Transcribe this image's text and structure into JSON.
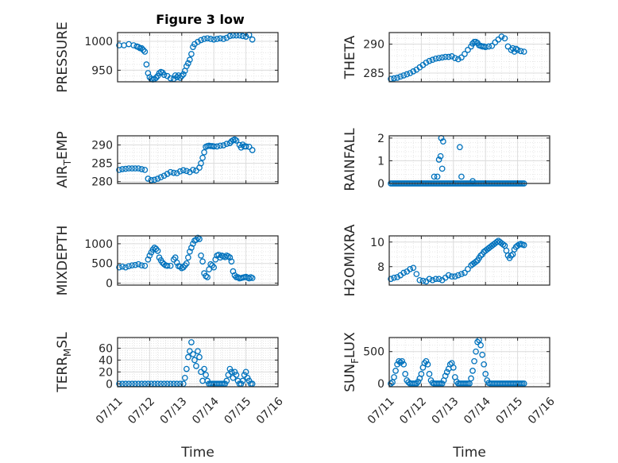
{
  "chart_data": [
    {
      "type": "scatter",
      "title": "Figure 3 low",
      "ylabel": "PRESSURE",
      "xlabel": "",
      "xlim": [
        "07/11",
        "07/16"
      ],
      "ylim": [
        930,
        1015
      ],
      "yticks": [
        950,
        1000
      ],
      "xticks": [
        "07/11",
        "07/12",
        "07/13",
        "07/14",
        "07/15",
        "07/16"
      ],
      "grid": true,
      "color": "#0072bd",
      "x": [
        0.05,
        0.2,
        0.35,
        0.5,
        0.6,
        0.65,
        0.7,
        0.75,
        0.8,
        0.85,
        0.9,
        0.95,
        1.0,
        1.05,
        1.1,
        1.15,
        1.2,
        1.25,
        1.3,
        1.35,
        1.4,
        1.45,
        1.55,
        1.65,
        1.75,
        1.8,
        1.85,
        1.9,
        1.95,
        2.0,
        2.05,
        2.1,
        2.15,
        2.2,
        2.25,
        2.3,
        2.35,
        2.4,
        2.5,
        2.6,
        2.7,
        2.8,
        2.9,
        3.0,
        3.1,
        3.2,
        3.3,
        3.4,
        3.5,
        3.6,
        3.7,
        3.8,
        3.9,
        4.0,
        4.1,
        4.2
      ],
      "y": [
        993,
        993,
        995,
        993,
        991,
        990,
        988,
        988,
        985,
        982,
        960,
        945,
        938,
        935,
        934,
        935,
        937,
        940,
        945,
        947,
        946,
        942,
        940,
        936,
        935,
        941,
        938,
        941,
        937,
        940,
        943,
        949,
        957,
        962,
        968,
        978,
        990,
        995,
        999,
        1002,
        1004,
        1005,
        1004,
        1003,
        1004,
        1005,
        1004,
        1006,
        1009,
        1010,
        1010,
        1010,
        1009,
        1008,
        1011,
        1003
      ]
    },
    {
      "type": "scatter",
      "ylabel": "THETA",
      "xlabel": "",
      "xlim": [
        "07/11",
        "07/16"
      ],
      "ylim": [
        283.5,
        292
      ],
      "yticks": [
        285,
        290
      ],
      "xticks": [
        "07/11",
        "07/12",
        "07/13",
        "07/14",
        "07/15",
        "07/16"
      ],
      "grid": true,
      "color": "#0072bd",
      "x": [
        0.05,
        0.15,
        0.25,
        0.35,
        0.45,
        0.55,
        0.65,
        0.75,
        0.85,
        0.95,
        1.05,
        1.15,
        1.25,
        1.35,
        1.45,
        1.55,
        1.65,
        1.75,
        1.85,
        1.95,
        2.05,
        2.15,
        2.25,
        2.35,
        2.45,
        2.55,
        2.6,
        2.65,
        2.7,
        2.75,
        2.8,
        2.85,
        2.9,
        2.95,
        3.0,
        3.1,
        3.2,
        3.3,
        3.4,
        3.5,
        3.6,
        3.7,
        3.8,
        3.85,
        3.9,
        3.95,
        4.0,
        4.1,
        4.2
      ],
      "y": [
        284.0,
        284.1,
        284.2,
        284.4,
        284.6,
        284.8,
        285.0,
        285.3,
        285.6,
        286.0,
        286.4,
        286.8,
        287.1,
        287.3,
        287.5,
        287.6,
        287.7,
        287.8,
        287.8,
        287.9,
        287.6,
        287.4,
        287.7,
        288.3,
        289.0,
        289.6,
        290.1,
        290.4,
        290.4,
        290.2,
        289.8,
        289.7,
        289.6,
        289.6,
        289.5,
        289.6,
        289.7,
        290.3,
        290.8,
        291.3,
        291.0,
        289.6,
        289.0,
        289.3,
        288.7,
        289.2,
        289.0,
        288.8,
        288.7
      ]
    },
    {
      "type": "scatter",
      "ylabel": "AIR_TEMP",
      "xlabel": "",
      "xlim": [
        "07/11",
        "07/16"
      ],
      "ylim": [
        279.5,
        292.5
      ],
      "yticks": [
        280,
        285,
        290
      ],
      "xticks": [
        "07/11",
        "07/12",
        "07/13",
        "07/14",
        "07/15",
        "07/16"
      ],
      "grid": true,
      "color": "#0072bd",
      "x": [
        0.05,
        0.15,
        0.25,
        0.35,
        0.45,
        0.55,
        0.65,
        0.75,
        0.85,
        0.95,
        1.05,
        1.15,
        1.25,
        1.35,
        1.45,
        1.55,
        1.65,
        1.75,
        1.85,
        1.95,
        2.05,
        2.15,
        2.25,
        2.35,
        2.45,
        2.55,
        2.6,
        2.65,
        2.7,
        2.75,
        2.8,
        2.85,
        2.9,
        2.95,
        3.0,
        3.1,
        3.2,
        3.3,
        3.4,
        3.5,
        3.55,
        3.6,
        3.65,
        3.7,
        3.8,
        3.85,
        3.9,
        3.95,
        4.0,
        4.1,
        4.2
      ],
      "y": [
        283.2,
        283.4,
        283.5,
        283.6,
        283.6,
        283.6,
        283.6,
        283.4,
        283.2,
        280.8,
        280.4,
        280.5,
        280.8,
        281.2,
        281.6,
        282.1,
        282.6,
        282.4,
        282.3,
        282.8,
        283.1,
        282.9,
        282.6,
        283.2,
        283.0,
        283.8,
        285.0,
        286.5,
        288.0,
        289.5,
        289.7,
        289.8,
        289.7,
        289.7,
        289.6,
        289.6,
        289.8,
        289.9,
        290.3,
        290.5,
        291.0,
        291.3,
        291.5,
        291.2,
        290.0,
        289.3,
        290.1,
        289.6,
        289.6,
        289.5,
        288.6
      ]
    },
    {
      "type": "scatter",
      "ylabel": "RAINFALL",
      "xlabel": "",
      "xlim": [
        "07/11",
        "07/16"
      ],
      "ylim": [
        0,
        2.1
      ],
      "yticks": [
        0,
        1,
        2
      ],
      "xticks": [
        "07/11",
        "07/12",
        "07/13",
        "07/14",
        "07/15",
        "07/16"
      ],
      "grid": true,
      "color": "#0072bd",
      "x": [
        0.05,
        0.1,
        0.15,
        0.2,
        0.25,
        0.3,
        0.35,
        0.4,
        0.45,
        0.5,
        0.55,
        0.6,
        0.65,
        0.7,
        0.75,
        0.8,
        0.85,
        0.9,
        0.95,
        1.0,
        1.05,
        1.1,
        1.15,
        1.2,
        1.25,
        1.3,
        1.35,
        1.4,
        1.45,
        1.5,
        1.55,
        1.6,
        1.65,
        1.7,
        1.75,
        1.8,
        1.85,
        1.9,
        1.95,
        2.0,
        2.05,
        2.1,
        2.15,
        2.2,
        2.25,
        2.3,
        2.35,
        2.4,
        2.45,
        2.5,
        2.55,
        2.6,
        2.65,
        2.7,
        2.75,
        2.8,
        2.85,
        2.9,
        2.95,
        3.0,
        3.05,
        3.1,
        3.15,
        3.2,
        3.25,
        3.3,
        3.35,
        3.4,
        3.45,
        3.5,
        3.55,
        3.6,
        3.65,
        3.7,
        3.75,
        3.8,
        3.85,
        3.9,
        3.95,
        4.0,
        4.05,
        4.1,
        4.15,
        4.2,
        1.4,
        1.5,
        1.6,
        1.55,
        1.62,
        1.68,
        1.65,
        2.2,
        2.25,
        2.6
      ],
      "y": [
        0,
        0,
        0,
        0,
        0,
        0,
        0,
        0,
        0,
        0,
        0,
        0,
        0,
        0,
        0,
        0,
        0,
        0,
        0,
        0,
        0,
        0,
        0,
        0,
        0,
        0,
        0,
        0,
        0,
        0,
        0,
        0,
        0,
        0,
        0,
        0,
        0,
        0,
        0,
        0,
        0,
        0,
        0,
        0,
        0,
        0,
        0,
        0,
        0,
        0,
        0,
        0,
        0,
        0,
        0,
        0,
        0,
        0,
        0,
        0,
        0,
        0,
        0,
        0,
        0,
        0,
        0,
        0,
        0,
        0,
        0,
        0,
        0,
        0,
        0,
        0,
        0,
        0,
        0,
        0,
        0,
        0,
        0,
        0,
        0.3,
        0.3,
        1.2,
        1.05,
        2.0,
        1.85,
        0.65,
        1.6,
        0.3,
        0.1
      ]
    },
    {
      "type": "scatter",
      "ylabel": "MIXDEPTH",
      "xlabel": "",
      "xlim": [
        "07/11",
        "07/16"
      ],
      "ylim": [
        -50,
        1200
      ],
      "yticks": [
        0,
        500,
        1000
      ],
      "xticks": [
        "07/11",
        "07/12",
        "07/13",
        "07/14",
        "07/15",
        "07/16"
      ],
      "grid": true,
      "color": "#0072bd",
      "x": [
        0.05,
        0.15,
        0.25,
        0.35,
        0.45,
        0.55,
        0.65,
        0.75,
        0.85,
        0.95,
        1.0,
        1.05,
        1.1,
        1.15,
        1.2,
        1.25,
        1.3,
        1.35,
        1.4,
        1.45,
        1.5,
        1.55,
        1.65,
        1.75,
        1.8,
        1.85,
        1.9,
        1.95,
        2.0,
        2.05,
        2.1,
        2.15,
        2.2,
        2.25,
        2.3,
        2.35,
        2.4,
        2.45,
        2.5,
        2.55,
        2.6,
        2.65,
        2.7,
        2.75,
        2.8,
        2.85,
        2.9,
        2.95,
        3.0,
        3.05,
        3.1,
        3.15,
        3.2,
        3.25,
        3.3,
        3.35,
        3.4,
        3.45,
        3.5,
        3.55,
        3.6,
        3.65,
        3.7,
        3.75,
        3.8,
        3.85,
        3.9,
        3.95,
        4.0,
        4.05,
        4.1,
        4.15,
        4.2
      ],
      "y": [
        400,
        420,
        400,
        430,
        450,
        460,
        480,
        450,
        440,
        600,
        700,
        780,
        850,
        900,
        870,
        820,
        650,
        580,
        520,
        480,
        450,
        440,
        440,
        600,
        650,
        520,
        430,
        420,
        380,
        400,
        450,
        500,
        650,
        800,
        900,
        1000,
        1080,
        1100,
        1150,
        1120,
        700,
        550,
        250,
        180,
        150,
        350,
        480,
        450,
        400,
        600,
        700,
        720,
        650,
        700,
        680,
        660,
        700,
        680,
        650,
        550,
        300,
        200,
        150,
        150,
        120,
        130,
        140,
        150,
        160,
        140,
        120,
        150,
        130
      ]
    },
    {
      "type": "scatter",
      "ylabel": "H2OMIXRA",
      "xlabel": "",
      "xlim": [
        "07/11",
        "07/16"
      ],
      "ylim": [
        6.5,
        10.5
      ],
      "yticks": [
        8,
        10
      ],
      "xticks": [
        "07/11",
        "07/12",
        "07/13",
        "07/14",
        "07/15",
        "07/16"
      ],
      "grid": true,
      "color": "#0072bd",
      "x": [
        0.05,
        0.15,
        0.25,
        0.35,
        0.45,
        0.55,
        0.65,
        0.75,
        0.85,
        0.95,
        1.05,
        1.15,
        1.25,
        1.35,
        1.45,
        1.55,
        1.65,
        1.75,
        1.85,
        1.95,
        2.05,
        2.15,
        2.25,
        2.35,
        2.45,
        2.55,
        2.6,
        2.65,
        2.7,
        2.75,
        2.8,
        2.85,
        2.9,
        2.95,
        3.0,
        3.05,
        3.1,
        3.15,
        3.2,
        3.25,
        3.3,
        3.35,
        3.4,
        3.45,
        3.5,
        3.55,
        3.6,
        3.65,
        3.7,
        3.75,
        3.8,
        3.85,
        3.9,
        3.95,
        4.0,
        4.05,
        4.1,
        4.15,
        4.2
      ],
      "y": [
        7.0,
        7.1,
        7.15,
        7.3,
        7.5,
        7.6,
        7.8,
        7.9,
        7.4,
        6.9,
        6.85,
        6.8,
        7.0,
        6.9,
        7.0,
        7.0,
        6.9,
        7.1,
        7.3,
        7.2,
        7.2,
        7.3,
        7.4,
        7.5,
        7.8,
        8.1,
        8.2,
        8.3,
        8.4,
        8.5,
        8.7,
        8.9,
        9.0,
        9.2,
        9.3,
        9.4,
        9.5,
        9.6,
        9.7,
        9.8,
        9.9,
        10.0,
        10.1,
        10.0,
        9.9,
        9.8,
        9.7,
        9.3,
        8.9,
        8.7,
        8.9,
        9.0,
        9.4,
        9.6,
        9.7,
        9.8,
        9.85,
        9.8,
        9.75
      ]
    },
    {
      "type": "scatter",
      "ylabel": "TERR_MSL",
      "xlabel": "Time",
      "xlim": [
        "07/11",
        "07/16"
      ],
      "ylim": [
        -5,
        78
      ],
      "yticks": [
        0,
        20,
        40,
        60
      ],
      "xticks": [
        "07/11",
        "07/12",
        "07/13",
        "07/14",
        "07/15",
        "07/16"
      ],
      "grid": true,
      "color": "#0072bd",
      "x": [
        0.05,
        0.15,
        0.25,
        0.35,
        0.45,
        0.55,
        0.65,
        0.75,
        0.85,
        0.95,
        1.05,
        1.15,
        1.25,
        1.35,
        1.45,
        1.55,
        1.65,
        1.75,
        1.85,
        1.95,
        2.05,
        2.1,
        2.15,
        2.2,
        2.25,
        2.3,
        2.35,
        2.4,
        2.45,
        2.5,
        2.55,
        2.6,
        2.65,
        2.7,
        2.75,
        2.8,
        2.85,
        2.9,
        2.95,
        3.0,
        3.05,
        3.1,
        3.15,
        3.2,
        3.25,
        3.3,
        3.35,
        3.4,
        3.45,
        3.5,
        3.55,
        3.6,
        3.65,
        3.7,
        3.75,
        3.8,
        3.85,
        3.9,
        3.95,
        4.0,
        4.05,
        4.1,
        4.15,
        4.2
      ],
      "y": [
        0,
        0,
        0,
        0,
        0,
        0,
        0,
        0,
        0,
        0,
        0,
        0,
        0,
        0,
        0,
        0,
        0,
        0,
        0,
        0,
        0,
        10,
        25,
        45,
        55,
        70,
        50,
        40,
        30,
        55,
        45,
        20,
        5,
        25,
        15,
        5,
        0,
        0,
        0,
        0,
        0,
        0,
        0,
        0,
        0,
        0,
        0,
        5,
        15,
        25,
        20,
        10,
        20,
        15,
        5,
        0,
        0,
        5,
        15,
        20,
        10,
        5,
        0,
        0
      ]
    },
    {
      "type": "scatter",
      "ylabel": "SUN_FLUX",
      "xlabel": "Time",
      "xlim": [
        "07/11",
        "07/16"
      ],
      "ylim": [
        -50,
        720
      ],
      "yticks": [
        0,
        500
      ],
      "xticks": [
        "07/11",
        "07/12",
        "07/13",
        "07/14",
        "07/15",
        "07/16"
      ],
      "grid": true,
      "color": "#0072bd",
      "x": [
        0.05,
        0.1,
        0.15,
        0.2,
        0.25,
        0.3,
        0.35,
        0.4,
        0.45,
        0.5,
        0.55,
        0.6,
        0.65,
        0.7,
        0.75,
        0.8,
        0.85,
        0.9,
        0.95,
        1.0,
        1.05,
        1.1,
        1.15,
        1.2,
        1.25,
        1.3,
        1.35,
        1.4,
        1.45,
        1.5,
        1.55,
        1.6,
        1.65,
        1.7,
        1.75,
        1.8,
        1.85,
        1.9,
        1.95,
        2.0,
        2.05,
        2.1,
        2.15,
        2.2,
        2.25,
        2.3,
        2.35,
        2.4,
        2.45,
        2.5,
        2.55,
        2.6,
        2.65,
        2.7,
        2.75,
        2.8,
        2.85,
        2.9,
        2.95,
        3.0,
        3.05,
        3.1,
        3.15,
        3.2,
        3.25,
        3.3,
        3.35,
        3.4,
        3.45,
        3.5,
        3.55,
        3.6,
        3.65,
        3.7,
        3.75,
        3.8,
        3.85,
        3.9,
        3.95,
        4.0,
        4.05,
        4.1,
        4.15,
        4.2
      ],
      "y": [
        0,
        20,
        100,
        200,
        300,
        350,
        330,
        350,
        300,
        150,
        50,
        20,
        0,
        0,
        0,
        0,
        0,
        30,
        80,
        150,
        250,
        320,
        350,
        300,
        150,
        50,
        10,
        0,
        0,
        0,
        0,
        0,
        0,
        50,
        120,
        180,
        230,
        300,
        320,
        250,
        100,
        30,
        0,
        0,
        0,
        0,
        0,
        0,
        0,
        0,
        80,
        200,
        350,
        500,
        650,
        680,
        600,
        450,
        300,
        150,
        50,
        10,
        0,
        0,
        0,
        0,
        0,
        0,
        0,
        0,
        0,
        0,
        0,
        0,
        0,
        0,
        0,
        0,
        0,
        0,
        0,
        0,
        0,
        0
      ]
    }
  ]
}
